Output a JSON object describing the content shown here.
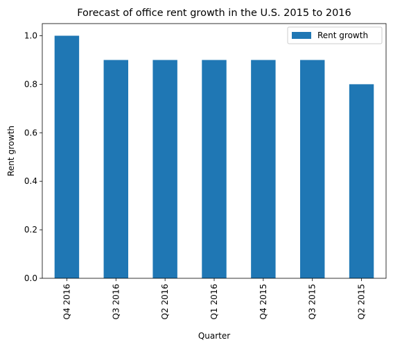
{
  "chart_data": {
    "type": "bar",
    "title": "Forecast of office rent growth in the U.S. 2015 to 2016",
    "xlabel": "Quarter",
    "ylabel": "Rent growth",
    "categories": [
      "Q4 2016",
      "Q3 2016",
      "Q2 2016",
      "Q1 2016",
      "Q4 2015",
      "Q3 2015",
      "Q2 2015"
    ],
    "series": [
      {
        "name": "Rent growth",
        "values": [
          1.0,
          0.9,
          0.9,
          0.9,
          0.9,
          0.9,
          0.8
        ],
        "color": "#1f77b4"
      }
    ],
    "ylim": [
      0,
      1.05
    ],
    "yticks": [
      0.0,
      0.2,
      0.4,
      0.6,
      0.8,
      1.0
    ],
    "ytick_labels": [
      "0.0",
      "0.2",
      "0.4",
      "0.6",
      "0.8",
      "1.0"
    ],
    "grid": false,
    "legend_position": "top-right"
  }
}
